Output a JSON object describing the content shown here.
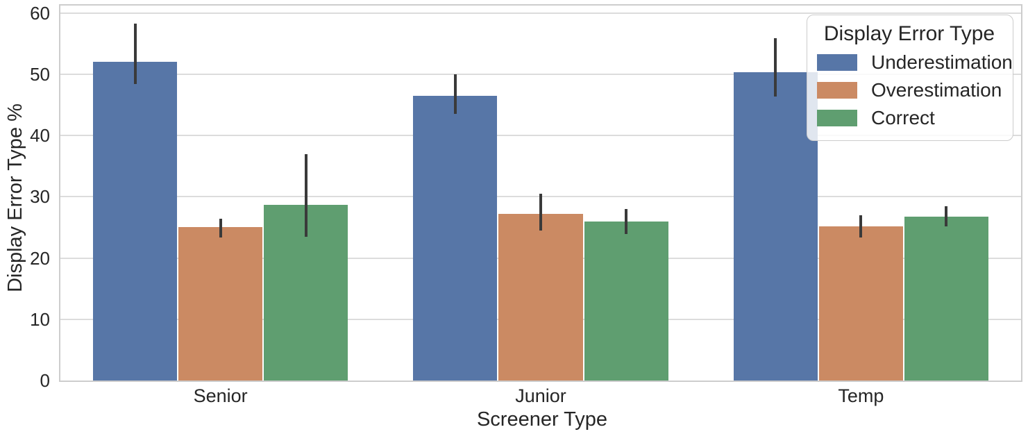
{
  "chart_data": {
    "type": "bar",
    "title": "",
    "xlabel": "Screener Type",
    "ylabel": "Display Error Type %",
    "categories": [
      "Senior",
      "Junior",
      "Temp"
    ],
    "series": [
      {
        "name": "Underestimation",
        "color": "#5776A7",
        "values": [
          52.0,
          46.5,
          50.3
        ],
        "ci_low": [
          48.4,
          43.5,
          46.4
        ],
        "ci_high": [
          58.2,
          50.0,
          55.9
        ]
      },
      {
        "name": "Overestimation",
        "color": "#CB8A63",
        "values": [
          25.0,
          27.2,
          25.2
        ],
        "ci_low": [
          23.4,
          24.5,
          23.4
        ],
        "ci_high": [
          26.4,
          30.5,
          27.0
        ]
      },
      {
        "name": "Correct",
        "color": "#5F9E70",
        "values": [
          28.7,
          26.0,
          26.7
        ],
        "ci_low": [
          23.5,
          23.9,
          25.2
        ],
        "ci_high": [
          36.9,
          28.0,
          28.4
        ]
      }
    ],
    "yticks": [
      0,
      10,
      20,
      30,
      40,
      50,
      60
    ],
    "ylim": [
      0,
      61.2
    ],
    "grid": true,
    "bar_group_width": 0.8,
    "error_bar_color": "#3A3A3A",
    "legend": {
      "title": "Display Error Type",
      "position": "upper right"
    }
  }
}
